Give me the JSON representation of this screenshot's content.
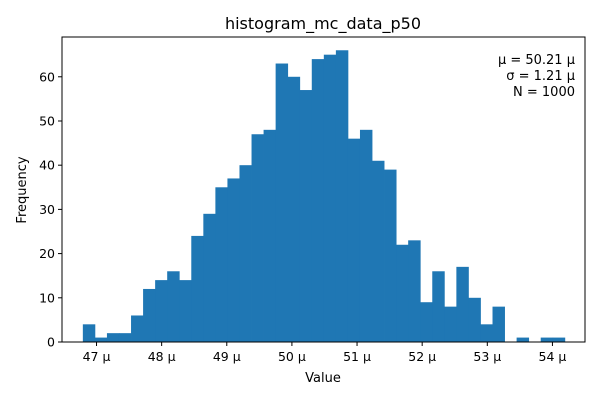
{
  "chart_data": {
    "type": "bar",
    "title": "histogram_mc_data_p50",
    "xlabel": "Value",
    "ylabel": "Frequency",
    "xlim": [
      46.47,
      54.5
    ],
    "ylim": [
      0,
      69
    ],
    "bin_width": 0.185,
    "first_bin_start": 46.79,
    "counts": [
      4,
      1,
      2,
      2,
      6,
      12,
      14,
      16,
      14,
      24,
      29,
      35,
      37,
      40,
      47,
      48,
      63,
      60,
      57,
      64,
      65,
      66,
      46,
      48,
      41,
      39,
      22,
      23,
      9,
      16,
      8,
      17,
      10,
      4,
      8,
      0,
      1,
      0,
      1,
      1
    ],
    "x_ticks": [
      47,
      48,
      49,
      50,
      51,
      52,
      53,
      54
    ],
    "x_tick_labels": [
      "47 μ",
      "48 μ",
      "49 μ",
      "50 μ",
      "51 μ",
      "52 μ",
      "53 μ",
      "54 μ"
    ],
    "y_ticks": [
      0,
      10,
      20,
      30,
      40,
      50,
      60
    ],
    "y_tick_labels": [
      "0",
      "10",
      "20",
      "30",
      "40",
      "50",
      "60"
    ],
    "bar_color": "#1f77b4",
    "annotations": [
      "μ = 50.21 μ",
      "σ = 1.21 μ",
      "N = 1000"
    ],
    "annotation_position": "top-right",
    "grid": false,
    "legend": false
  }
}
